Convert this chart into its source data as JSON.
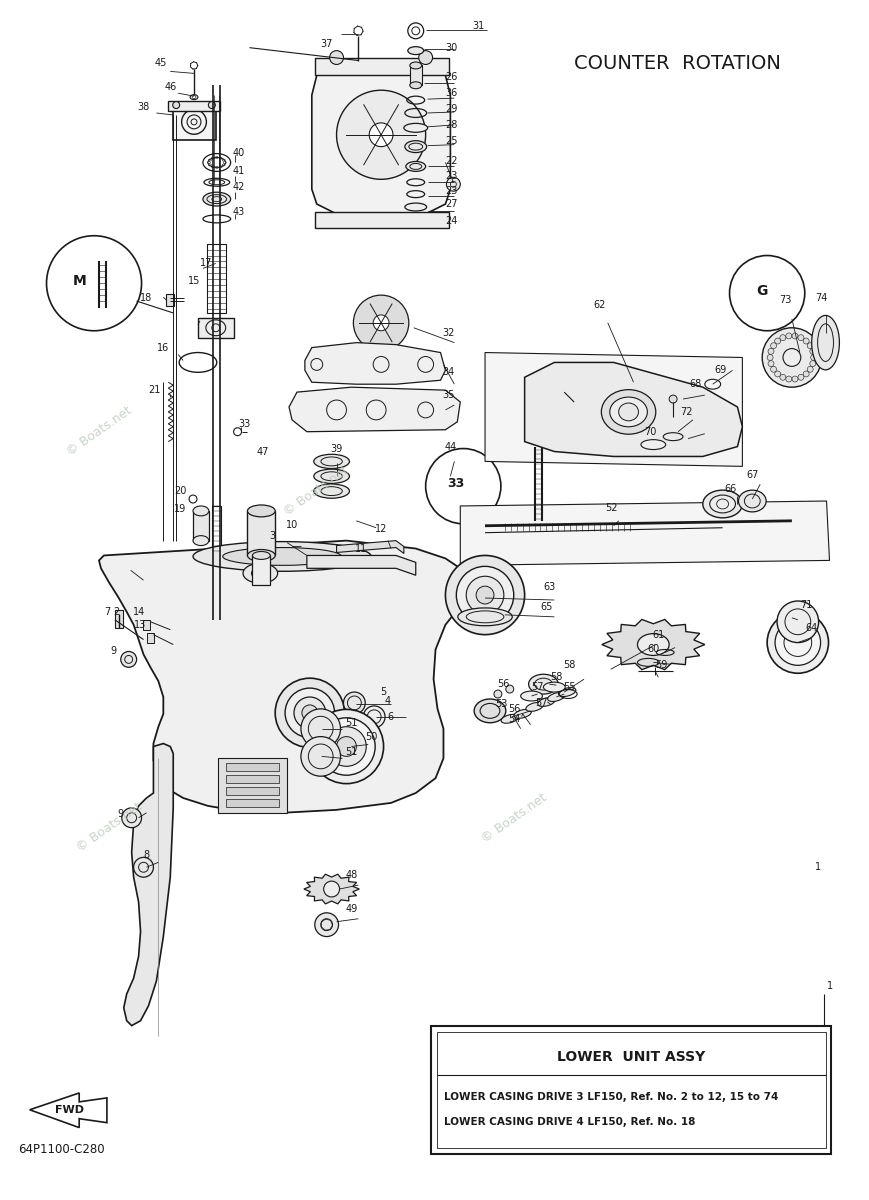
{
  "bg_color": "#ffffff",
  "line_color": "#1a1a1a",
  "title": "COUNTER  ROTATION",
  "watermark": "© Boats.net",
  "part_number": "64P1100-C280",
  "info_box_title": "LOWER  UNIT ASSY",
  "info_line1": "LOWER CASING DRIVE 3 LF150, Ref. No. 2 to 12, 15 to 74",
  "info_line2": "LOWER CASING DRIVE 4 LF150, Ref. No. 18",
  "figsize": [
    8.69,
    12.0
  ],
  "dpi": 100
}
